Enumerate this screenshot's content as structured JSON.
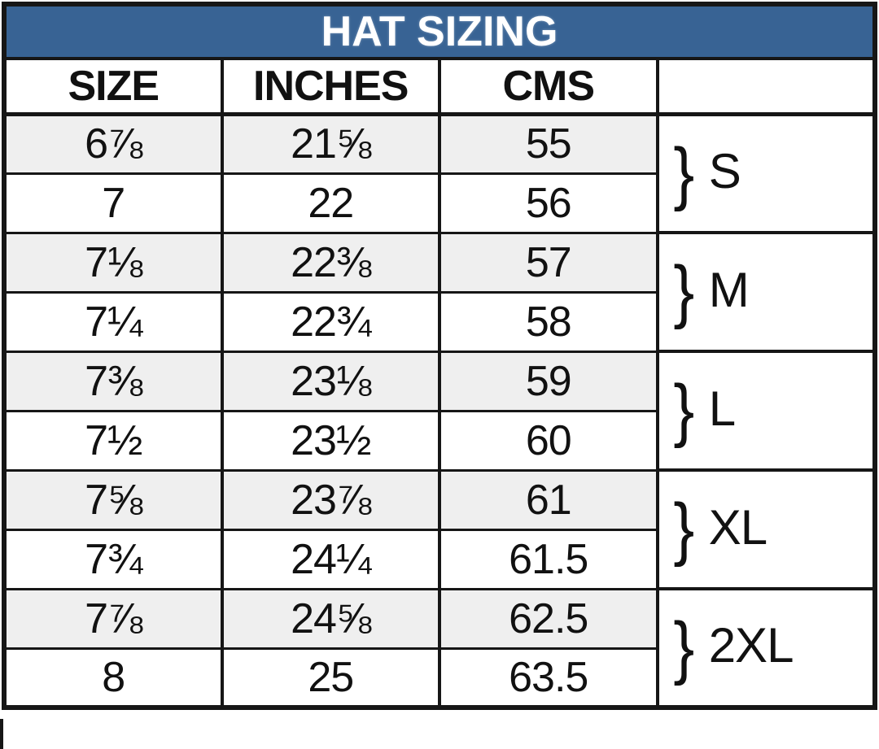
{
  "chart_data": {
    "type": "table",
    "title": "HAT SIZING",
    "columns": [
      "SIZE",
      "INCHES",
      "CMS",
      ""
    ],
    "rows": [
      [
        "6⅞",
        "21⅝",
        "55"
      ],
      [
        "7",
        "22",
        "56"
      ],
      [
        "7⅛",
        "22⅜",
        "57"
      ],
      [
        "7¼",
        "22¾",
        "58"
      ],
      [
        "7⅜",
        "23⅛",
        "59"
      ],
      [
        "7½",
        "23½",
        "60"
      ],
      [
        "7⅝",
        "23⅞",
        "61"
      ],
      [
        "7¾",
        "24¼",
        "61.5"
      ],
      [
        "7⅞",
        "24⅝",
        "62.5"
      ],
      [
        "8",
        "25",
        "63.5"
      ]
    ],
    "row_groups": [
      {
        "label": "S",
        "rows": [
          0,
          1
        ]
      },
      {
        "label": "M",
        "rows": [
          2,
          3
        ]
      },
      {
        "label": "L",
        "rows": [
          4,
          5
        ]
      },
      {
        "label": "XL",
        "rows": [
          6,
          7
        ]
      },
      {
        "label": "2XL",
        "rows": [
          8,
          9
        ]
      }
    ],
    "brace_glyph": "}",
    "layout": {
      "striped_pair_first_row": true,
      "legend_position": "none",
      "grid": true
    }
  },
  "colors": {
    "title_bg": "#386394",
    "title_text": "#FFFFFF",
    "stripe_bg": "#EFEFEF",
    "row_bg": "#FFFFFF",
    "border": "#161616",
    "text": "#111111"
  }
}
